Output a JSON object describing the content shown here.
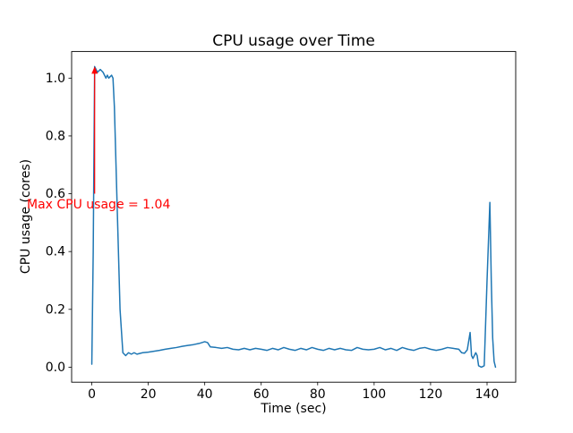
{
  "chart_data": {
    "type": "line",
    "title": "CPU usage over Time",
    "xlabel": "Time (sec)",
    "ylabel": "CPU usage (cores)",
    "xlim": [
      -7.15,
      150.15
    ],
    "ylim": [
      -0.052,
      1.092
    ],
    "xticks": [
      0,
      20,
      40,
      60,
      80,
      100,
      120,
      140
    ],
    "yticks": [
      0.0,
      0.2,
      0.4,
      0.6,
      0.8,
      1.0
    ],
    "grid": false,
    "legend": "none",
    "line_color": "#1f77b4",
    "series": [
      {
        "name": "cpu-usage",
        "points": [
          [
            0,
            0.01
          ],
          [
            0.5,
            0.4
          ],
          [
            1,
            1.04
          ],
          [
            1.5,
            1.03
          ],
          [
            2,
            1.02
          ],
          [
            3,
            1.03
          ],
          [
            4,
            1.02
          ],
          [
            5,
            1.0
          ],
          [
            5.5,
            1.01
          ],
          [
            6,
            1.0
          ],
          [
            7,
            1.01
          ],
          [
            7.5,
            1.0
          ],
          [
            8,
            0.9
          ],
          [
            9,
            0.55
          ],
          [
            10,
            0.2
          ],
          [
            11,
            0.05
          ],
          [
            12,
            0.04
          ],
          [
            13,
            0.05
          ],
          [
            14,
            0.045
          ],
          [
            15,
            0.05
          ],
          [
            16,
            0.045
          ],
          [
            18,
            0.05
          ],
          [
            20,
            0.052
          ],
          [
            22,
            0.055
          ],
          [
            24,
            0.058
          ],
          [
            26,
            0.062
          ],
          [
            28,
            0.065
          ],
          [
            30,
            0.068
          ],
          [
            32,
            0.072
          ],
          [
            34,
            0.075
          ],
          [
            36,
            0.078
          ],
          [
            38,
            0.082
          ],
          [
            40,
            0.088
          ],
          [
            41,
            0.085
          ],
          [
            42,
            0.07
          ],
          [
            44,
            0.068
          ],
          [
            46,
            0.065
          ],
          [
            48,
            0.068
          ],
          [
            50,
            0.062
          ],
          [
            52,
            0.06
          ],
          [
            54,
            0.065
          ],
          [
            56,
            0.06
          ],
          [
            58,
            0.065
          ],
          [
            60,
            0.062
          ],
          [
            62,
            0.058
          ],
          [
            64,
            0.065
          ],
          [
            66,
            0.06
          ],
          [
            68,
            0.068
          ],
          [
            70,
            0.062
          ],
          [
            72,
            0.058
          ],
          [
            74,
            0.065
          ],
          [
            76,
            0.06
          ],
          [
            78,
            0.068
          ],
          [
            80,
            0.062
          ],
          [
            82,
            0.058
          ],
          [
            84,
            0.065
          ],
          [
            86,
            0.06
          ],
          [
            88,
            0.065
          ],
          [
            90,
            0.06
          ],
          [
            92,
            0.058
          ],
          [
            94,
            0.068
          ],
          [
            96,
            0.062
          ],
          [
            98,
            0.06
          ],
          [
            100,
            0.062
          ],
          [
            102,
            0.068
          ],
          [
            104,
            0.06
          ],
          [
            106,
            0.065
          ],
          [
            108,
            0.058
          ],
          [
            110,
            0.068
          ],
          [
            112,
            0.062
          ],
          [
            114,
            0.058
          ],
          [
            116,
            0.065
          ],
          [
            118,
            0.068
          ],
          [
            120,
            0.062
          ],
          [
            122,
            0.058
          ],
          [
            124,
            0.062
          ],
          [
            126,
            0.068
          ],
          [
            128,
            0.065
          ],
          [
            130,
            0.062
          ],
          [
            131,
            0.05
          ],
          [
            132,
            0.048
          ],
          [
            133,
            0.06
          ],
          [
            134,
            0.12
          ],
          [
            134.5,
            0.04
          ],
          [
            135,
            0.03
          ],
          [
            136,
            0.05
          ],
          [
            136.5,
            0.04
          ],
          [
            137,
            0.005
          ],
          [
            138,
            0.0
          ],
          [
            139,
            0.005
          ],
          [
            140,
            0.3
          ],
          [
            141,
            0.57
          ],
          [
            141.5,
            0.3
          ],
          [
            142,
            0.1
          ],
          [
            142.5,
            0.02
          ],
          [
            143,
            0.0
          ]
        ]
      }
    ],
    "annotation": {
      "text": "Max CPU usage = 1.04",
      "color": "#ff0000",
      "arrow_x": 1,
      "arrow_y_base": 0.6,
      "arrow_y_tip": 1.04,
      "text_x": -23,
      "text_y": 0.55
    }
  }
}
